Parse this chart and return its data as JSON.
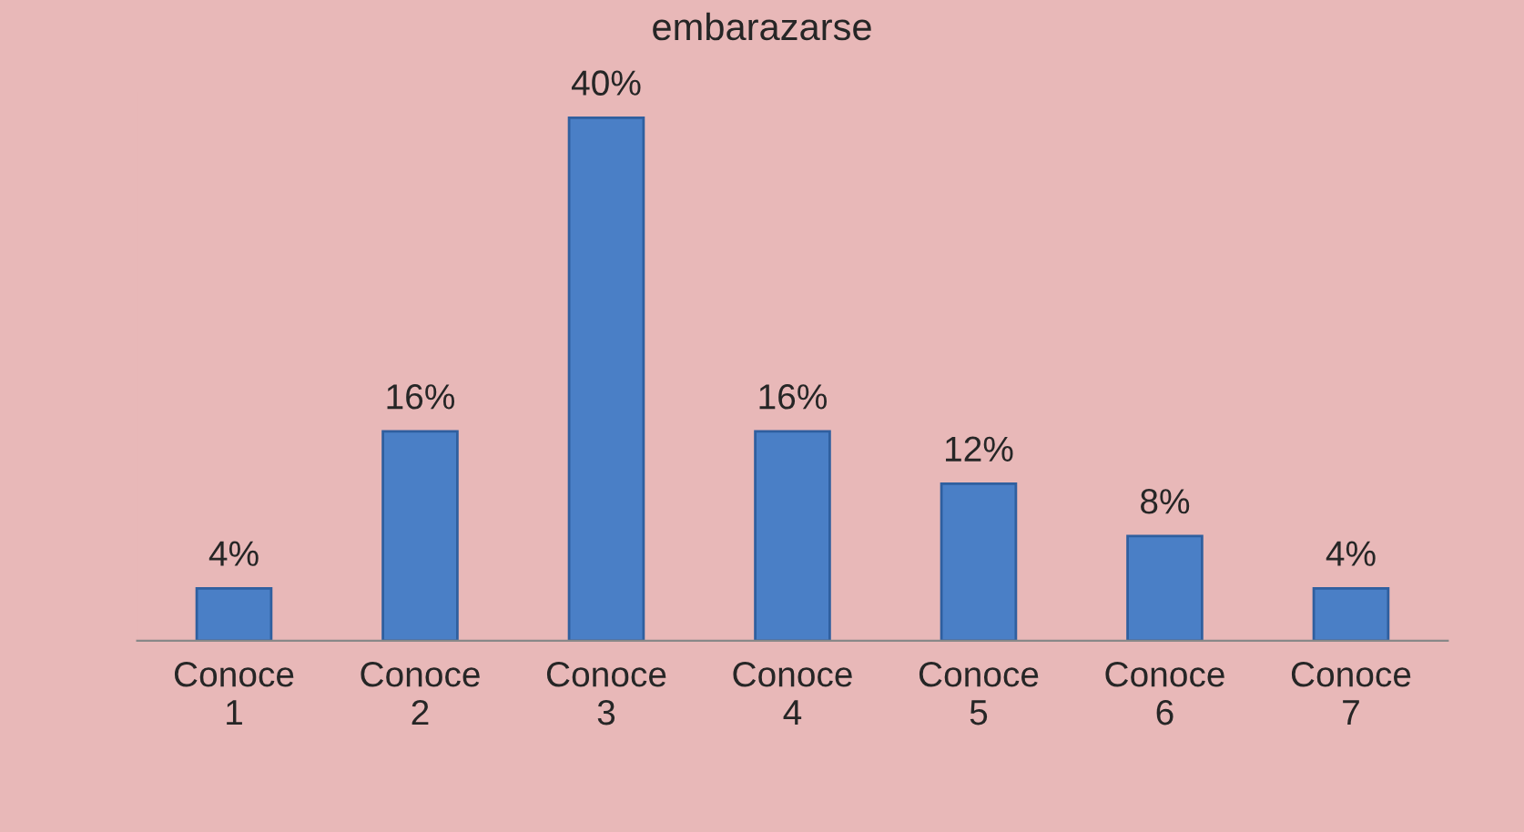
{
  "chart_data": {
    "type": "bar",
    "title": "embarazarse",
    "categories": [
      "Conoce\n1",
      "Conoce\n2",
      "Conoce\n3",
      "Conoce\n4",
      "Conoce\n5",
      "Conoce\n6",
      "Conoce\n7"
    ],
    "values": [
      4,
      16,
      40,
      16,
      12,
      8,
      4
    ],
    "value_labels": [
      "4%",
      "16%",
      "40%",
      "16%",
      "12%",
      "8%",
      "4%"
    ],
    "color": "#4a7fc6",
    "grid": false
  }
}
